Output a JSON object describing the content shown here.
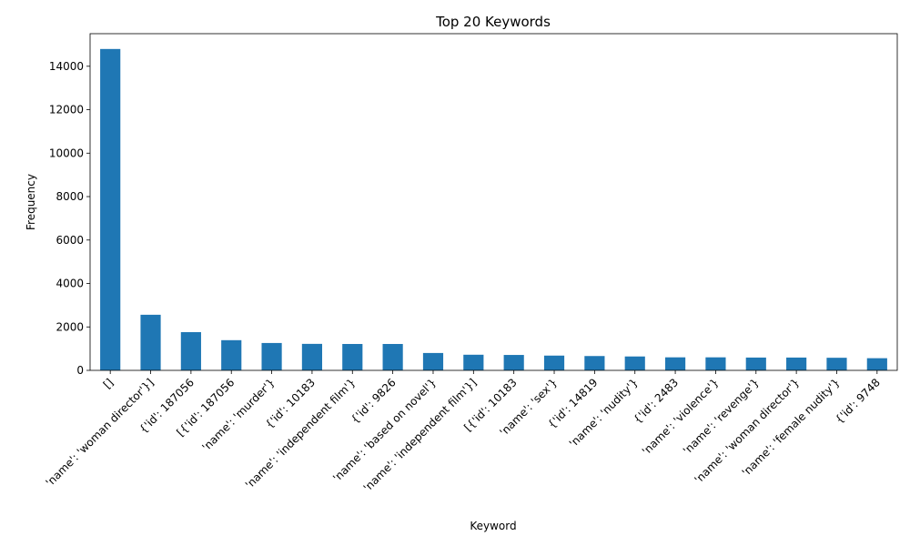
{
  "chart_data": {
    "type": "bar",
    "title": "Top 20 Keywords",
    "xlabel": "Keyword",
    "ylabel": "Frequency",
    "ylim": [
      0,
      15500
    ],
    "yticks": [
      0,
      2000,
      4000,
      6000,
      8000,
      10000,
      12000,
      14000
    ],
    "grid": false,
    "bar_color": "#1f77b4",
    "categories": [
      "[]",
      "'name': 'woman director'}]",
      "{'id': 187056",
      "[{'id': 187056",
      "'name': 'murder'}",
      "{'id': 10183",
      "'name': 'independent film'}",
      "{'id': 9826",
      "'name': 'based on novel'}",
      "'name': 'independent film'}]",
      "[{'id': 10183",
      "'name': 'sex'}",
      "{'id': 14819",
      "'name': 'nudity'}",
      "{'id': 2483",
      "'name': 'violence'}",
      "'name': 'revenge'}",
      "'name': 'woman director'}",
      "'name': 'female nudity'}",
      "{'id': 9748"
    ],
    "values": [
      14795,
      2560,
      1760,
      1390,
      1260,
      1220,
      1215,
      1215,
      800,
      720,
      710,
      680,
      660,
      640,
      600,
      600,
      590,
      590,
      580,
      560
    ]
  }
}
